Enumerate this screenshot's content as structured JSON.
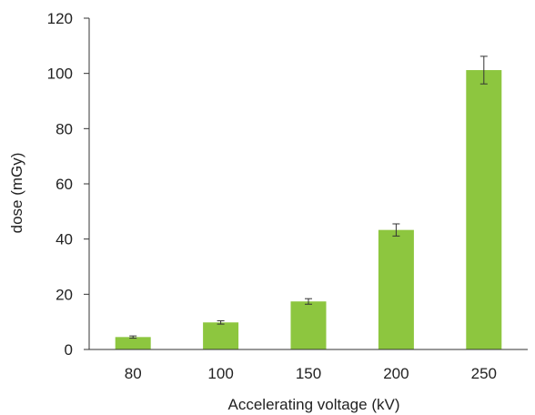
{
  "chart_data": {
    "type": "bar",
    "categories": [
      "80",
      "100",
      "150",
      "200",
      "250"
    ],
    "values": [
      4.5,
      9.8,
      17.4,
      43.3,
      101.2
    ],
    "error": [
      0.4,
      0.6,
      1.0,
      2.2,
      5.0
    ],
    "xlabel": "Accelerating voltage (kV)",
    "ylabel": "dose (mGy)",
    "ylim": [
      0,
      120
    ],
    "yticks": [
      0,
      20,
      40,
      60,
      80,
      100,
      120
    ],
    "ytick_labels": [
      "0",
      "20",
      "40",
      "60",
      "80",
      "100",
      "120"
    ],
    "grid": false,
    "legend": "none",
    "bar_color": "#8dc63f"
  }
}
